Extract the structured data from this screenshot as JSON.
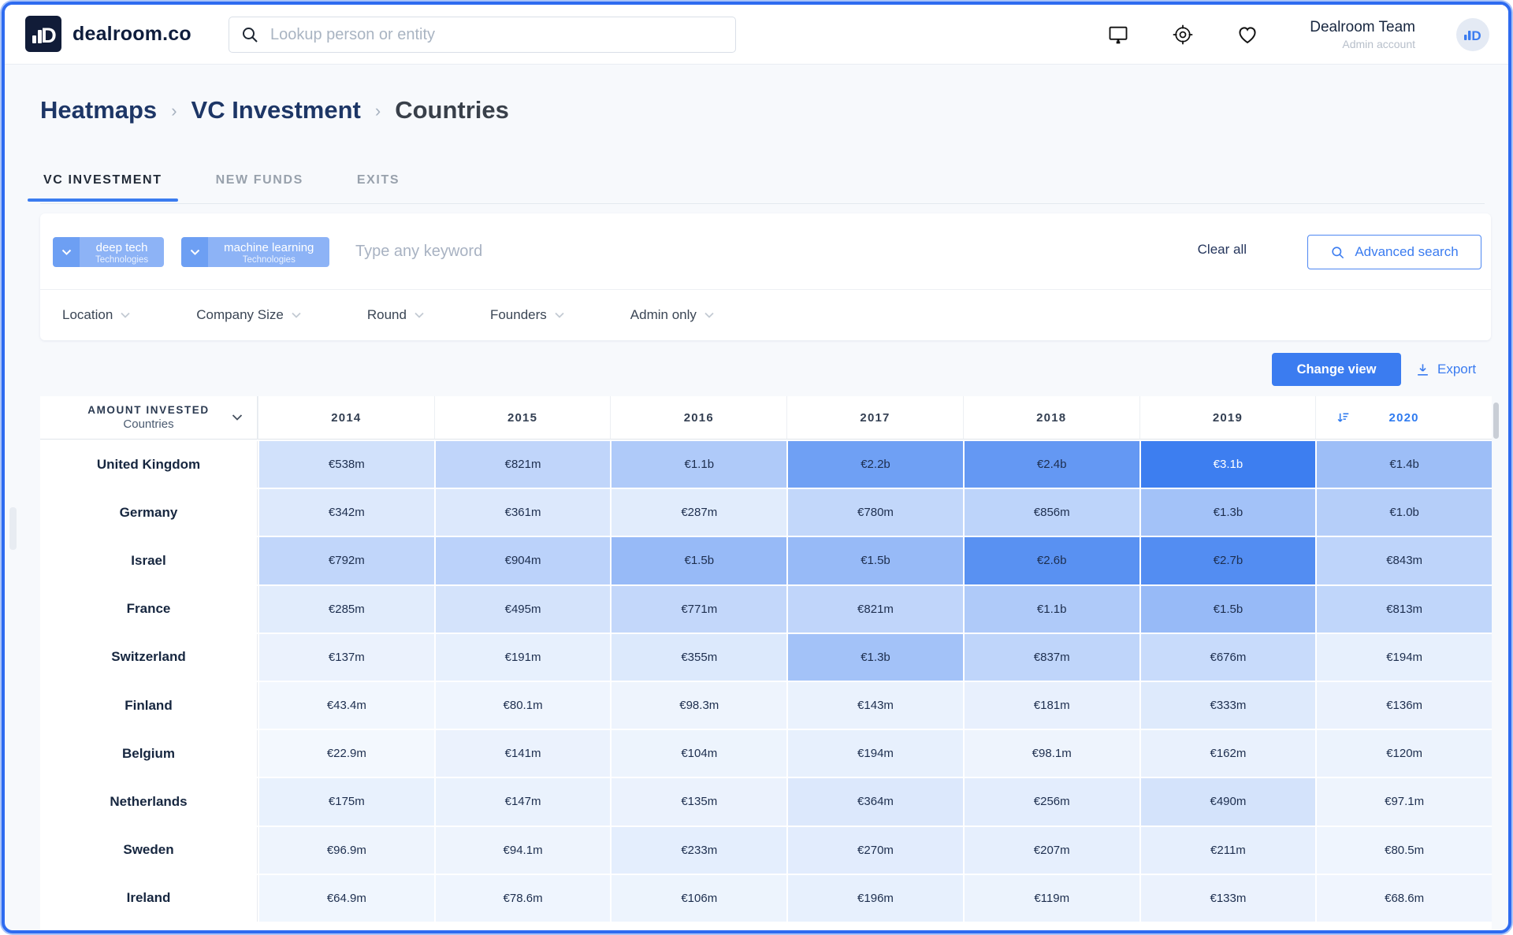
{
  "topbar": {
    "brand": "dealroom.co",
    "search_placeholder": "Lookup person or entity",
    "icons": [
      "monitor-icon",
      "target-icon",
      "heart-icon"
    ],
    "user_name": "Dealroom Team",
    "user_role": "Admin account"
  },
  "breadcrumb": {
    "items": [
      "Heatmaps",
      "VC Investment",
      "Countries"
    ]
  },
  "tabs": [
    {
      "label": "VC INVESTMENT",
      "active": true
    },
    {
      "label": "NEW FUNDS",
      "active": false
    },
    {
      "label": "EXITS",
      "active": false
    }
  ],
  "filters": {
    "chips": [
      {
        "label": "deep tech",
        "category": "Technologies"
      },
      {
        "label": "machine learning",
        "category": "Technologies"
      }
    ],
    "keyword_placeholder": "Type any keyword",
    "clear_all_label": "Clear all",
    "advanced_search_label": "Advanced search",
    "dropdowns": [
      "Location",
      "Company Size",
      "Round",
      "Founders",
      "Admin only"
    ]
  },
  "toolbar": {
    "change_view_label": "Change view",
    "export_label": "Export"
  },
  "table": {
    "header": {
      "title": "AMOUNT INVESTED",
      "subtitle": "Countries"
    },
    "years": [
      "2014",
      "2015",
      "2016",
      "2017",
      "2018",
      "2019",
      "2020"
    ],
    "sorted_year": "2020",
    "rows": [
      {
        "country": "United Kingdom",
        "values": [
          "€538m",
          "€821m",
          "€1.1b",
          "€2.2b",
          "€2.4b",
          "€3.1b",
          "€1.4b"
        ],
        "amounts_m": [
          538,
          821,
          1100,
          2200,
          2400,
          3100,
          1400
        ]
      },
      {
        "country": "Germany",
        "values": [
          "€342m",
          "€361m",
          "€287m",
          "€780m",
          "€856m",
          "€1.3b",
          "€1.0b"
        ],
        "amounts_m": [
          342,
          361,
          287,
          780,
          856,
          1300,
          1000
        ]
      },
      {
        "country": "Israel",
        "values": [
          "€792m",
          "€904m",
          "€1.5b",
          "€1.5b",
          "€2.6b",
          "€2.7b",
          "€843m"
        ],
        "amounts_m": [
          792,
          904,
          1500,
          1500,
          2600,
          2700,
          843
        ]
      },
      {
        "country": "France",
        "values": [
          "€285m",
          "€495m",
          "€771m",
          "€821m",
          "€1.1b",
          "€1.5b",
          "€813m"
        ],
        "amounts_m": [
          285,
          495,
          771,
          821,
          1100,
          1500,
          813
        ]
      },
      {
        "country": "Switzerland",
        "values": [
          "€137m",
          "€191m",
          "€355m",
          "€1.3b",
          "€837m",
          "€676m",
          "€194m"
        ],
        "amounts_m": [
          137,
          191,
          355,
          1300,
          837,
          676,
          194
        ]
      },
      {
        "country": "Finland",
        "values": [
          "€43.4m",
          "€80.1m",
          "€98.3m",
          "€143m",
          "€181m",
          "€333m",
          "€136m"
        ],
        "amounts_m": [
          43.4,
          80.1,
          98.3,
          143,
          181,
          333,
          136
        ]
      },
      {
        "country": "Belgium",
        "values": [
          "€22.9m",
          "€141m",
          "€104m",
          "€194m",
          "€98.1m",
          "€162m",
          "€120m"
        ],
        "amounts_m": [
          22.9,
          141,
          104,
          194,
          98.1,
          162,
          120
        ]
      },
      {
        "country": "Netherlands",
        "values": [
          "€175m",
          "€147m",
          "€135m",
          "€364m",
          "€256m",
          "€490m",
          "€97.1m"
        ],
        "amounts_m": [
          175,
          147,
          135,
          364,
          256,
          490,
          97.1
        ]
      },
      {
        "country": "Sweden",
        "values": [
          "€96.9m",
          "€94.1m",
          "€233m",
          "€270m",
          "€207m",
          "€211m",
          "€80.5m"
        ],
        "amounts_m": [
          96.9,
          94.1,
          233,
          270,
          207,
          211,
          80.5
        ]
      },
      {
        "country": "Ireland",
        "values": [
          "€64.9m",
          "€78.6m",
          "€106m",
          "€196m",
          "€119m",
          "€133m",
          "€68.6m"
        ],
        "amounts_m": [
          64.9,
          78.6,
          106,
          196,
          119,
          133,
          68.6
        ]
      }
    ],
    "heat_max_m": 3100
  },
  "colors": {
    "accent": "#3b7cf0",
    "heat_low": "#f5f9fe",
    "heat_high": "#3d7ef0",
    "chip_dark": "#6d9ff3",
    "chip_light": "#8db3f6",
    "brand_navy": "#111c38"
  }
}
